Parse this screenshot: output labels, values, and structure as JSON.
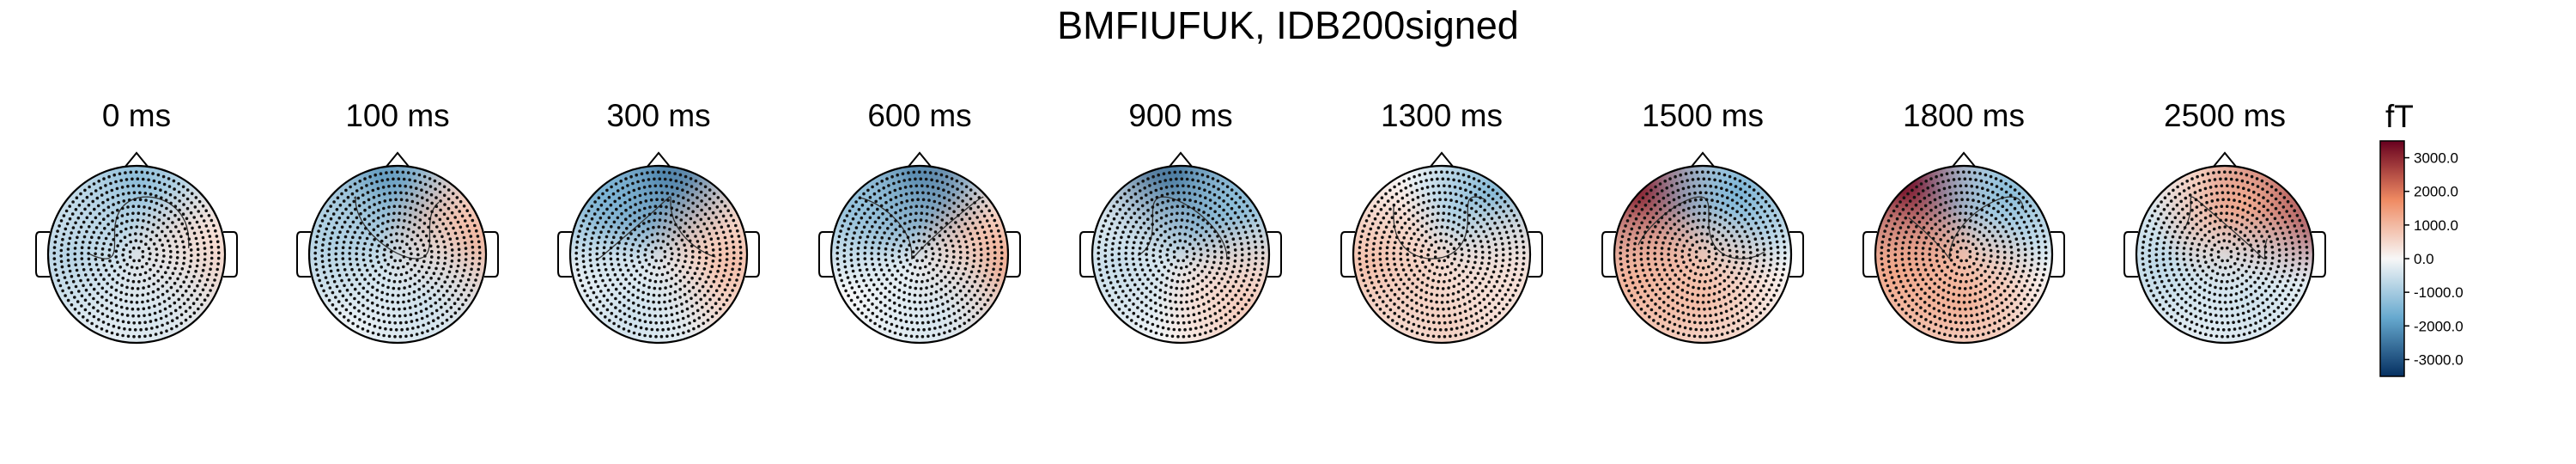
{
  "title": "BMFIUFUK, IDB200signed",
  "chart_data": {
    "type": "heatmap",
    "title": "BMFIUFUK, IDB200signed",
    "panels": [
      {
        "label": "0 ms",
        "blobs": [
          {
            "ax": 0.0,
            "ay": -0.85,
            "v": -1300
          },
          {
            "ax": -0.75,
            "ay": 0.0,
            "v": -800
          },
          {
            "ax": 0.8,
            "ay": 0.2,
            "v": 600
          },
          {
            "ax": 0.2,
            "ay": 0.7,
            "v": -400
          }
        ]
      },
      {
        "label": "100 ms",
        "blobs": [
          {
            "ax": -0.2,
            "ay": -0.85,
            "v": -2100
          },
          {
            "ax": -0.75,
            "ay": -0.2,
            "v": -900
          },
          {
            "ax": 0.85,
            "ay": -0.1,
            "v": 1100
          },
          {
            "ax": 0.3,
            "ay": 0.6,
            "v": -500
          }
        ]
      },
      {
        "label": "300 ms",
        "blobs": [
          {
            "ax": 0.0,
            "ay": -0.9,
            "v": -2800
          },
          {
            "ax": -0.6,
            "ay": -0.7,
            "v": -1500
          },
          {
            "ax": 0.85,
            "ay": 0.1,
            "v": 900
          },
          {
            "ax": -0.3,
            "ay": 0.7,
            "v": -500
          }
        ]
      },
      {
        "label": "600 ms",
        "blobs": [
          {
            "ax": -0.1,
            "ay": -0.9,
            "v": -2700
          },
          {
            "ax": -0.7,
            "ay": -0.6,
            "v": -1200
          },
          {
            "ax": 0.9,
            "ay": 0.2,
            "v": 1300
          },
          {
            "ax": 0.2,
            "ay": 0.7,
            "v": -400
          }
        ]
      },
      {
        "label": "900 ms",
        "blobs": [
          {
            "ax": 0.0,
            "ay": -0.9,
            "v": -3000
          },
          {
            "ax": 0.6,
            "ay": -0.6,
            "v": -1300
          },
          {
            "ax": -0.7,
            "ay": 0.1,
            "v": -600
          },
          {
            "ax": 0.75,
            "ay": 0.6,
            "v": 700
          }
        ]
      },
      {
        "label": "1300 ms",
        "blobs": [
          {
            "ax": 0.6,
            "ay": -0.65,
            "v": -1400
          },
          {
            "ax": -0.8,
            "ay": 0.1,
            "v": 900
          },
          {
            "ax": 0.1,
            "ay": 0.75,
            "v": 700
          },
          {
            "ax": 0.85,
            "ay": 0.3,
            "v": 400
          }
        ]
      },
      {
        "label": "1500 ms",
        "blobs": [
          {
            "ax": -0.75,
            "ay": -0.65,
            "v": 3200
          },
          {
            "ax": 0.4,
            "ay": -0.7,
            "v": -1500
          },
          {
            "ax": 0.0,
            "ay": 0.5,
            "v": 900
          },
          {
            "ax": -0.8,
            "ay": 0.3,
            "v": 1100
          }
        ]
      },
      {
        "label": "1800 ms",
        "blobs": [
          {
            "ax": -0.7,
            "ay": -0.7,
            "v": 3500
          },
          {
            "ax": 0.5,
            "ay": -0.7,
            "v": -1300
          },
          {
            "ax": 0.0,
            "ay": 0.55,
            "v": 1100
          },
          {
            "ax": -0.8,
            "ay": 0.2,
            "v": 1300
          }
        ]
      },
      {
        "label": "2500 ms",
        "blobs": [
          {
            "ax": 0.75,
            "ay": -0.7,
            "v": 3400
          },
          {
            "ax": -0.75,
            "ay": 0.1,
            "v": -700
          },
          {
            "ax": 0.2,
            "ay": -0.6,
            "v": 1200
          },
          {
            "ax": 0.3,
            "ay": 0.55,
            "v": -500
          }
        ]
      }
    ],
    "colorbar": {
      "unit": "fT",
      "min": -3500,
      "max": 3500,
      "ticks": [
        {
          "value": 3000,
          "label": "3000.0"
        },
        {
          "value": 2000,
          "label": "2000.0"
        },
        {
          "value": 1000,
          "label": "1000.0"
        },
        {
          "value": 0,
          "label": "0.0"
        },
        {
          "value": -1000,
          "label": "-1000.0"
        },
        {
          "value": -2000,
          "label": "-2000.0"
        },
        {
          "value": -3000,
          "label": "-3000.0"
        }
      ],
      "colors": {
        "negative": "#053061",
        "zero": "#f7f7f7",
        "positive": "#67001f"
      }
    },
    "grid": false
  }
}
